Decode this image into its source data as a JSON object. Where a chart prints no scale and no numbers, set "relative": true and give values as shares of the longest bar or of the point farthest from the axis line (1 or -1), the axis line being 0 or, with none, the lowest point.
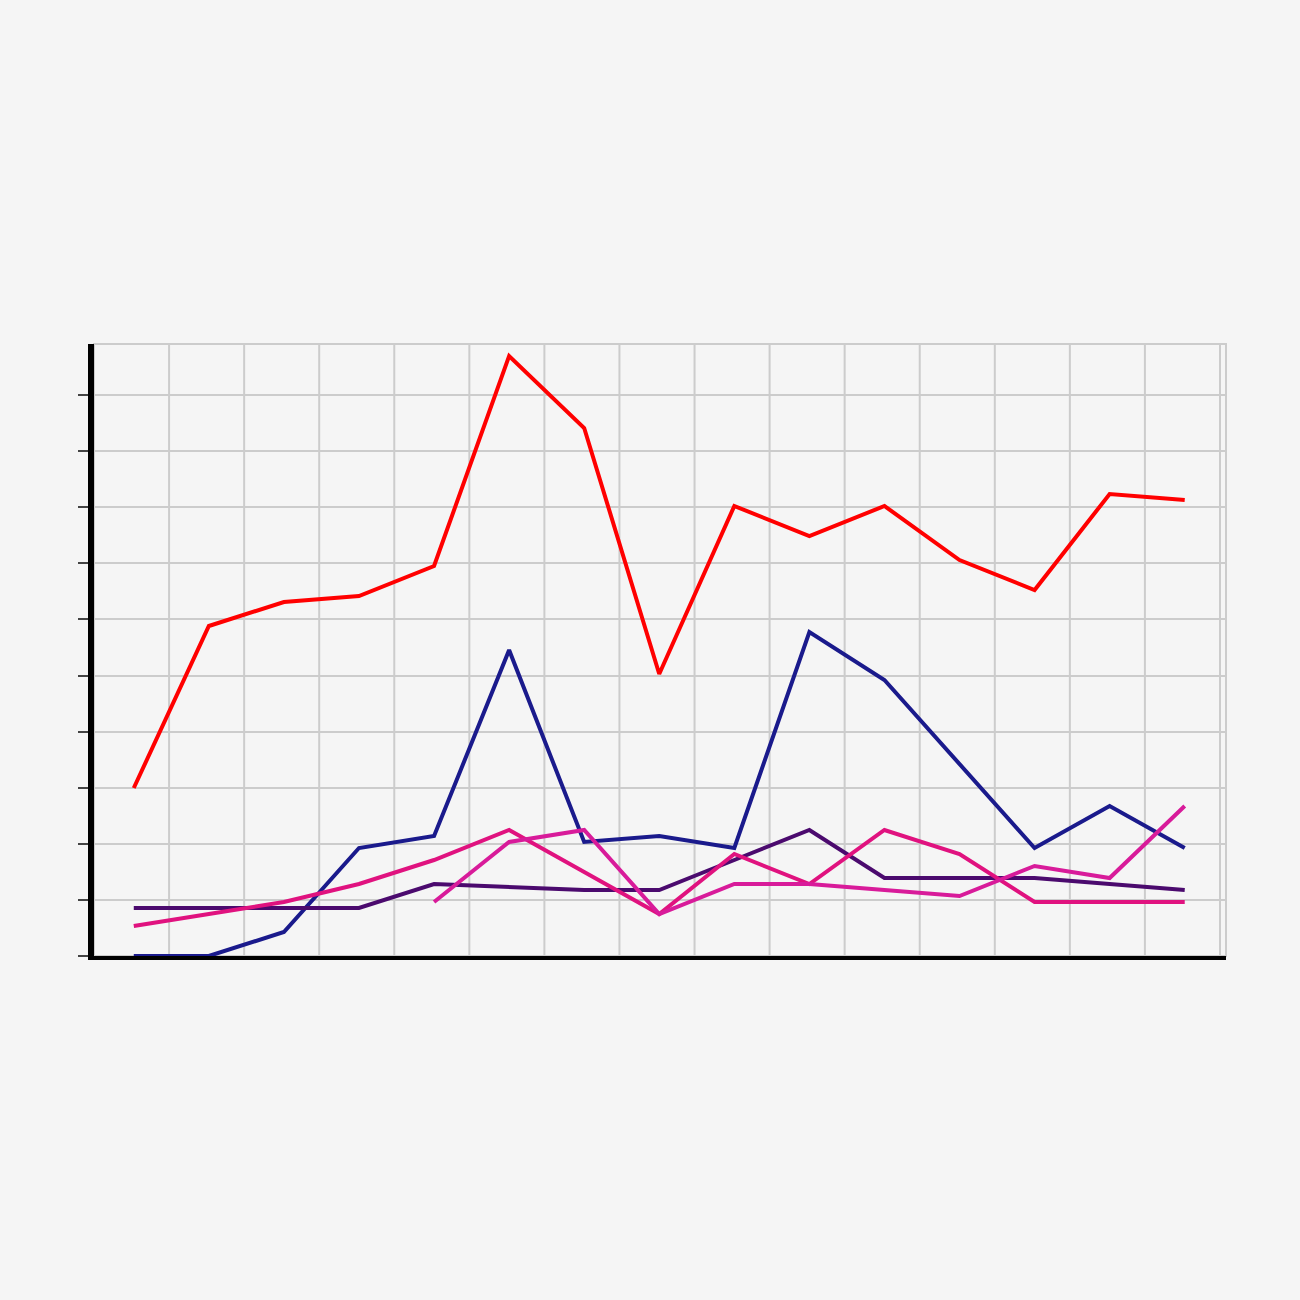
{
  "chart_data": {
    "type": "line",
    "relative": true,
    "grid": true,
    "categories": [
      null,
      null,
      null,
      null,
      null,
      null,
      null,
      null,
      null,
      null,
      null,
      null,
      null,
      null,
      null
    ],
    "series": [
      {
        "color": "#ff0000",
        "values": [
          0.28,
          0.55,
          0.59,
          0.6,
          0.65,
          1,
          0.88,
          0.47,
          0.75,
          0.7,
          0.75,
          0.66,
          0.61,
          0.77,
          0.76
        ]
      },
      {
        "color": "#1a1a8c",
        "values": [
          0,
          0,
          0.04,
          0.18,
          0.2,
          0.51,
          0.19,
          0.2,
          0.18,
          0.54,
          0.46,
          null,
          0.18,
          0.25,
          0.18
        ]
      },
      {
        "color": "#4b0a6e",
        "values": [
          0.08,
          null,
          0.08,
          0.08,
          0.12,
          null,
          0.11,
          0.11,
          0.16,
          0.21,
          0.13,
          0.13,
          0.13,
          0.12,
          0.11
        ]
      },
      {
        "color": "#e0127f",
        "values": [
          0.05,
          0.07,
          0.09,
          0.12,
          0.16,
          0.21,
          0.14,
          0.07,
          0.17,
          0.12,
          0.21,
          0.17,
          0.09,
          0.09,
          0.09
        ]
      },
      {
        "color": "#d81b9a",
        "values": [
          null,
          null,
          null,
          null,
          0.09,
          0.19,
          0.21,
          0.07,
          0.12,
          0.12,
          0.11,
          0.1,
          0.15,
          0.13,
          0.25
        ]
      }
    ]
  }
}
